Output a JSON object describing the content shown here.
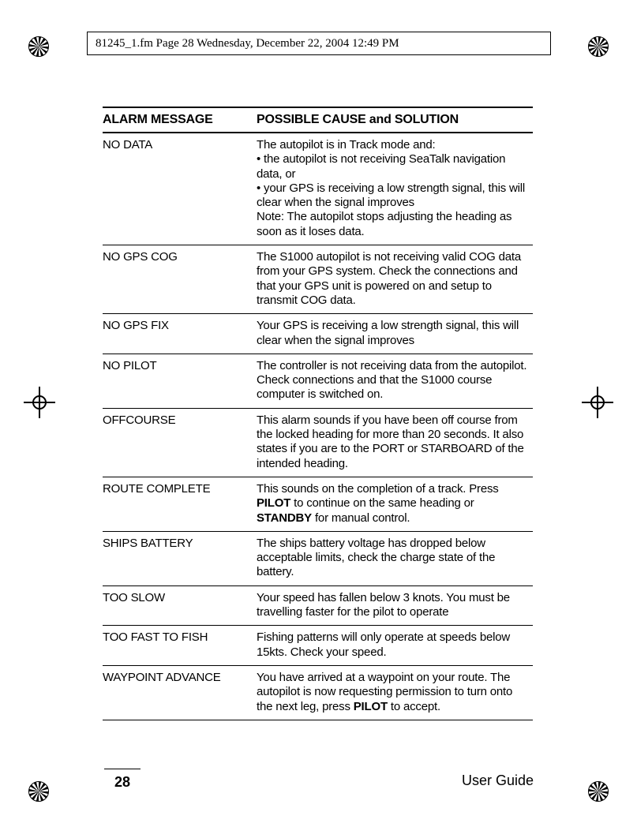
{
  "meta_line": "81245_1.fm  Page 28  Wednesday, December 22, 2004  12:49 PM",
  "table": {
    "header": {
      "col1": "ALARM MESSAGE",
      "col2": "POSSIBLE CAUSE and SOLUTION"
    },
    "header_fontsize": 16,
    "body_fontsize": 15,
    "border_color": "#000000",
    "rows": [
      {
        "msg": "NO DATA",
        "lines": [
          "The autopilot is in Track mode and:",
          "• the autopilot is not receiving SeaTalk navigation data, or",
          "• your GPS is receiving a low strength signal, this will clear when the signal improves",
          "Note: The autopilot stops adjusting the heading as soon as it loses data."
        ]
      },
      {
        "msg": "NO GPS COG",
        "lines": [
          "The S1000 autopilot is not receiving valid COG data from your GPS system. Check the connections and that your GPS unit is powered on and setup to transmit COG data."
        ]
      },
      {
        "msg": "NO GPS FIX",
        "lines": [
          "Your GPS is receiving a low strength signal, this will clear when the signal improves"
        ]
      },
      {
        "msg": "NO PILOT",
        "lines": [
          "The controller is not receiving data from the autopilot. Check connections and that the S1000 course computer is switched on."
        ]
      },
      {
        "msg": "OFFCOURSE",
        "lines": [
          "This alarm sounds if you have been off course from the locked heading for more than 20 seconds. It also states if you are to the PORT or STARBOARD of the intended heading."
        ]
      },
      {
        "msg": "ROUTE COMPLETE",
        "spans": [
          {
            "t": "This sounds on the completion of a track. Press "
          },
          {
            "t": "PILOT",
            "b": true
          },
          {
            "t": " to continue on the same heading or "
          },
          {
            "t": "STANDBY",
            "b": true
          },
          {
            "t": " for manual control."
          }
        ]
      },
      {
        "msg": "SHIPS BATTERY",
        "lines": [
          "The ships battery voltage has dropped below acceptable limits, check the charge state of the battery."
        ]
      },
      {
        "msg": "TOO SLOW",
        "lines": [
          "Your speed has fallen below 3 knots. You must be travelling faster for the pilot to operate"
        ]
      },
      {
        "msg": "TOO FAST TO FISH",
        "lines": [
          "Fishing patterns will only operate at speeds below 15kts. Check your speed."
        ]
      },
      {
        "msg": "WAYPOINT ADVANCE",
        "spans": [
          {
            "t": "You have arrived at a waypoint on your route. The autopilot is now requesting permission to turn onto the next leg, press "
          },
          {
            "t": "PILOT",
            "b": true
          },
          {
            "t": " to accept."
          }
        ]
      }
    ]
  },
  "footer": {
    "page_number": "28",
    "title": "User Guide"
  },
  "colors": {
    "text": "#000000",
    "background": "#ffffff"
  }
}
